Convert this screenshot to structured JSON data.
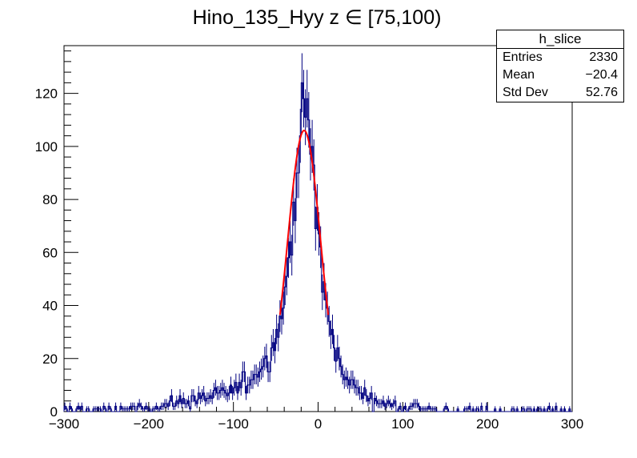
{
  "chart_data": {
    "type": "bar",
    "title": "Hino_135_Hyy z  ∈ [75,100)",
    "xlabel": "",
    "ylabel": "",
    "xlim": [
      -300,
      300
    ],
    "ylim": [
      0,
      138
    ],
    "x_ticks": [
      -300,
      -200,
      -100,
      0,
      100,
      200,
      300
    ],
    "x_tick_labels": [
      "−300",
      "−200",
      "−100",
      "0",
      "100",
      "200",
      "300"
    ],
    "y_ticks": [
      0,
      20,
      40,
      60,
      80,
      100,
      120
    ],
    "y_tick_labels": [
      "0",
      "20",
      "40",
      "60",
      "80",
      "100",
      "120"
    ],
    "grid": false,
    "bin_edges_range": [
      -300,
      300
    ],
    "bin_width": 2,
    "histogram_profile": [
      [
        -300,
        1
      ],
      [
        -250,
        1
      ],
      [
        -200,
        1.5
      ],
      [
        -180,
        2.5
      ],
      [
        -160,
        4
      ],
      [
        -140,
        5
      ],
      [
        -120,
        6
      ],
      [
        -100,
        8
      ],
      [
        -90,
        10
      ],
      [
        -80,
        13
      ],
      [
        -70,
        16
      ],
      [
        -60,
        20
      ],
      [
        -50,
        28
      ],
      [
        -45,
        34
      ],
      [
        -40,
        42
      ],
      [
        -35,
        55
      ],
      [
        -30,
        72
      ],
      [
        -25,
        92
      ],
      [
        -20,
        108
      ],
      [
        -15,
        113
      ],
      [
        -10,
        105
      ],
      [
        -5,
        88
      ],
      [
        0,
        68
      ],
      [
        5,
        52
      ],
      [
        10,
        38
      ],
      [
        15,
        30
      ],
      [
        20,
        24
      ],
      [
        25,
        19
      ],
      [
        30,
        15
      ],
      [
        40,
        10
      ],
      [
        50,
        7
      ],
      [
        60,
        5
      ],
      [
        80,
        3
      ],
      [
        100,
        2
      ],
      [
        150,
        1
      ],
      [
        200,
        0.7
      ],
      [
        300,
        0.5
      ]
    ],
    "series": [
      {
        "name": "h_slice",
        "style": "histogram-step",
        "color": "#000080"
      },
      {
        "name": "fit",
        "style": "gaussian-fit",
        "color": "#ff0000",
        "gauss": {
          "amplitude": 106,
          "mean": -16.5,
          "sigma": 19.5,
          "range": [
            -45,
            12
          ]
        }
      }
    ],
    "stats_box": {
      "title": "h_slice",
      "rows": [
        {
          "label": "Entries",
          "value": "2330"
        },
        {
          "label": "Mean",
          "value": "−20.4"
        },
        {
          "label": "Std Dev",
          "value": "52.76"
        }
      ]
    }
  },
  "colors": {
    "histogram": "#000080",
    "fit": "#ff0000",
    "axis": "#000000"
  }
}
